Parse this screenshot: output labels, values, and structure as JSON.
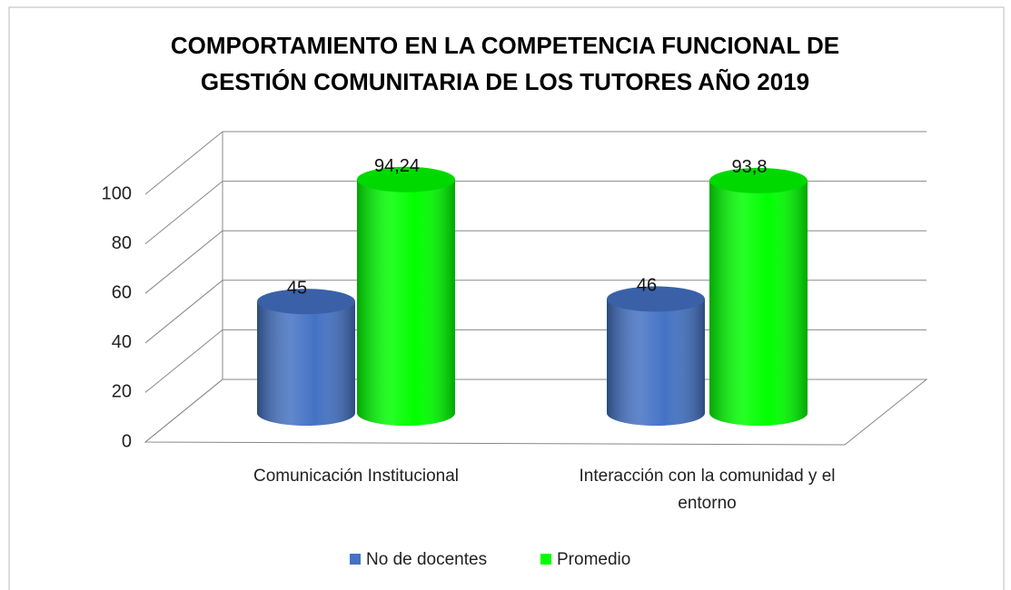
{
  "chart_data": {
    "type": "bar3d",
    "title": "COMPORTAMIENTO EN LA COMPETENCIA FUNCIONAL DE GESTIÓN COMUNITARIA DE LOS  TUTORES AÑO 2019",
    "categories": [
      "Comunicación Institucional",
      "Interacción con la comunidad y el entorno"
    ],
    "series": [
      {
        "name": "No de docentes",
        "color": "#4472c4",
        "values": [
          45,
          46
        ]
      },
      {
        "name": "Promedio",
        "color": "#00ff00",
        "values": [
          94.24,
          93.8
        ],
        "value_labels": [
          "94,24",
          "93,8"
        ]
      }
    ],
    "ylim": [
      0,
      100
    ],
    "yticks": [
      0,
      20,
      40,
      60,
      80,
      100
    ],
    "grid": true,
    "legend": "bottom"
  }
}
